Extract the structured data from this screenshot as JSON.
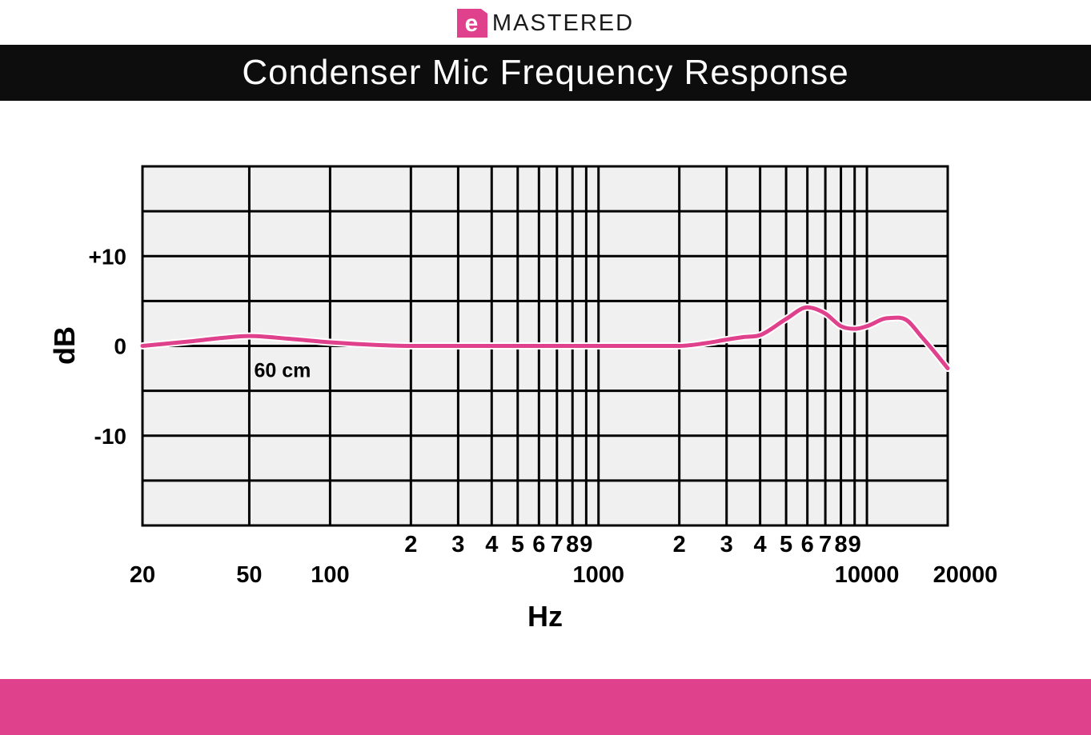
{
  "brand": {
    "logo_letter": "e",
    "name": "MASTERED",
    "accent_color": "#e0418c"
  },
  "header": {
    "title": "Condenser Mic Frequency Response"
  },
  "colors": {
    "curve": "#e0418c",
    "plot_background": "#f0f0f0",
    "grid": "#000000",
    "footer": "#e0418c"
  },
  "chart_data": {
    "type": "line",
    "title": "Condenser Mic Frequency Response",
    "xlabel": "Hz",
    "ylabel": "dB",
    "x_scale": "log",
    "xlim": [
      20,
      20000
    ],
    "ylim": [
      -20,
      20
    ],
    "y_ticks": [
      {
        "value": 10,
        "label": "+10"
      },
      {
        "value": 0,
        "label": "0"
      },
      {
        "value": -10,
        "label": "-10"
      }
    ],
    "x_major_ticks": [
      {
        "value": 20,
        "label": "20"
      },
      {
        "value": 50,
        "label": "50"
      },
      {
        "value": 100,
        "label": "100"
      },
      {
        "value": 1000,
        "label": "1000"
      },
      {
        "value": 10000,
        "label": "10000"
      },
      {
        "value": 20000,
        "label": "20000"
      }
    ],
    "x_minor_ticks": [
      {
        "value": 200,
        "label": "2"
      },
      {
        "value": 300,
        "label": "3"
      },
      {
        "value": 400,
        "label": "4"
      },
      {
        "value": 500,
        "label": "5"
      },
      {
        "value": 600,
        "label": "6"
      },
      {
        "value": 700,
        "label": "7"
      },
      {
        "value": 800,
        "label": "8"
      },
      {
        "value": 900,
        "label": "9"
      },
      {
        "value": 2000,
        "label": "2"
      },
      {
        "value": 3000,
        "label": "3"
      },
      {
        "value": 4000,
        "label": "4"
      },
      {
        "value": 5000,
        "label": "5"
      },
      {
        "value": 6000,
        "label": "6"
      },
      {
        "value": 7000,
        "label": "7"
      },
      {
        "value": 8000,
        "label": "8"
      },
      {
        "value": 9000,
        "label": "9"
      }
    ],
    "annotations": [
      {
        "text": "60 cm",
        "x": 50,
        "y": -2.5
      }
    ],
    "series": [
      {
        "x": [
          20,
          30,
          40,
          50,
          70,
          100,
          150,
          200,
          300,
          500,
          1000,
          2000,
          2500,
          3000,
          3500,
          4000,
          5000,
          6000,
          7000,
          8000,
          9000,
          10000,
          12000,
          14000,
          16000,
          18000,
          20000
        ],
        "y": [
          0,
          0.5,
          0.9,
          1.1,
          0.8,
          0.4,
          0.1,
          0,
          0,
          0,
          0,
          0,
          0.3,
          0.7,
          1.0,
          1.2,
          3.0,
          4.3,
          3.6,
          2.2,
          1.9,
          2.2,
          3.1,
          2.9,
          1.0,
          -0.8,
          -2.5
        ]
      }
    ]
  }
}
